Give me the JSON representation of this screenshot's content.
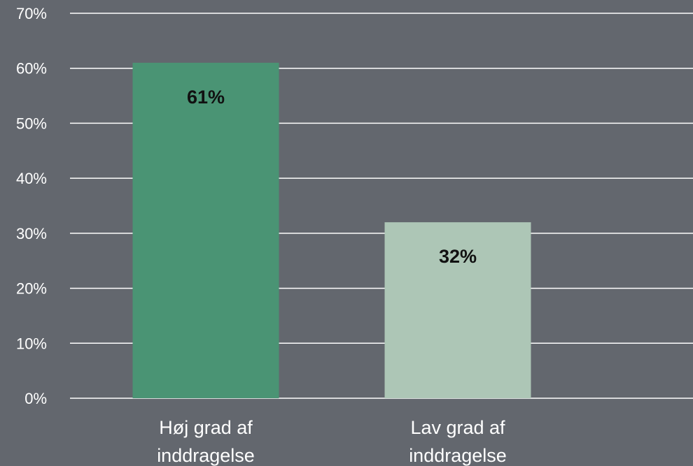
{
  "chart_data": {
    "type": "bar",
    "categories": [
      [
        "Høj grad af",
        "inddragelse"
      ],
      [
        "Lav grad af",
        "inddragelse"
      ]
    ],
    "values": [
      61,
      32
    ],
    "data_labels": [
      "61%",
      "32%"
    ],
    "bar_colors": [
      "#4a9474",
      "#adc6b6"
    ],
    "ylim": [
      0,
      70
    ],
    "y_ticks": [
      0,
      10,
      20,
      30,
      40,
      50,
      60,
      70
    ],
    "y_tick_labels": [
      "0%",
      "10%",
      "20%",
      "30%",
      "40%",
      "50%",
      "60%",
      "70%"
    ],
    "grid": true,
    "background_color": "#63676e",
    "title": "",
    "xlabel": "",
    "ylabel": ""
  }
}
